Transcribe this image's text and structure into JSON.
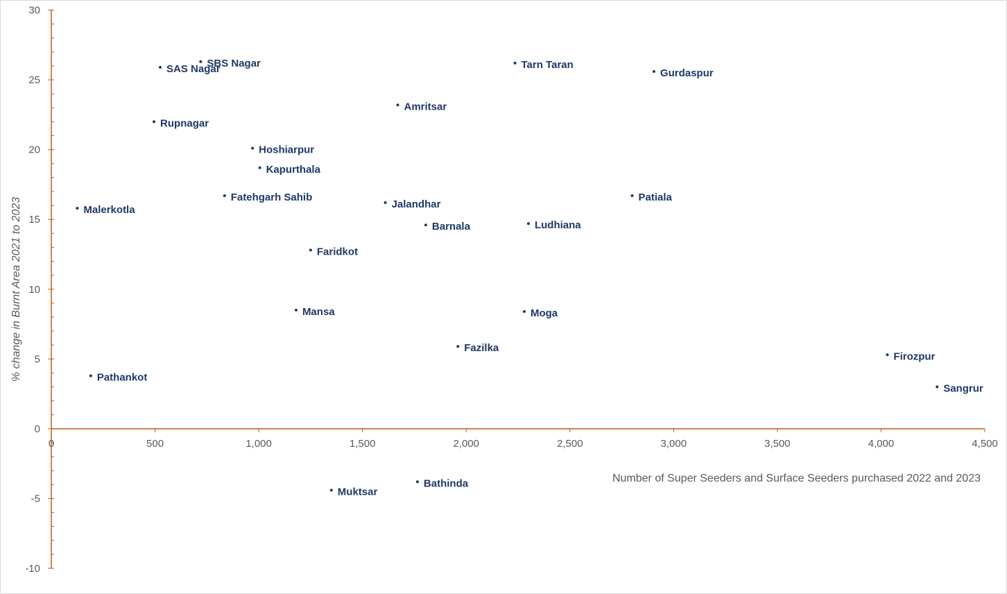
{
  "chart_data": {
    "type": "scatter",
    "xlabel": "Number of Super Seeders and Surface Seeders purchased  2022 and 2023",
    "ylabel": "% change in Burnt Area 2021 to 2023",
    "xlim": [
      0,
      4500
    ],
    "ylim": [
      -10,
      30
    ],
    "x_ticks": [
      {
        "value": 0,
        "label": "0"
      },
      {
        "value": 500,
        "label": "500"
      },
      {
        "value": 1000,
        "label": "1,000"
      },
      {
        "value": 1500,
        "label": "1,500"
      },
      {
        "value": 2000,
        "label": "2,000"
      },
      {
        "value": 2500,
        "label": "2,500"
      },
      {
        "value": 3000,
        "label": "3,000"
      },
      {
        "value": 3500,
        "label": "3,500"
      },
      {
        "value": 4000,
        "label": "4,000"
      },
      {
        "value": 4500,
        "label": "4,500"
      }
    ],
    "y_ticks": [
      {
        "value": 30,
        "label": "30"
      },
      {
        "value": 25,
        "label": "25"
      },
      {
        "value": 20,
        "label": "20"
      },
      {
        "value": 15,
        "label": "15"
      },
      {
        "value": 10,
        "label": "10"
      },
      {
        "value": 5,
        "label": "5"
      },
      {
        "value": 0,
        "label": "0"
      },
      {
        "value": -5,
        "label": "-5"
      },
      {
        "value": -10,
        "label": "-10"
      }
    ],
    "grid": false,
    "legend": "none",
    "colors": {
      "axis": "#c55a11",
      "point": "#1f3864",
      "label": "#1f3864",
      "ticks": "#595959"
    },
    "points": [
      {
        "name": "SBS Nagar",
        "x": 720,
        "y": 26.3
      },
      {
        "name": "SAS Nagar",
        "x": 525,
        "y": 25.9
      },
      {
        "name": "Tarn Taran",
        "x": 2235,
        "y": 26.2
      },
      {
        "name": "Gurdaspur",
        "x": 2905,
        "y": 25.6
      },
      {
        "name": "Amritsar",
        "x": 1670,
        "y": 23.2
      },
      {
        "name": "Rupnagar",
        "x": 495,
        "y": 22.0
      },
      {
        "name": "Hoshiarpur",
        "x": 970,
        "y": 20.1
      },
      {
        "name": "Kapurthala",
        "x": 1005,
        "y": 18.7
      },
      {
        "name": "Fatehgarh Sahib",
        "x": 835,
        "y": 16.7
      },
      {
        "name": "Patiala",
        "x": 2800,
        "y": 16.7
      },
      {
        "name": "Jalandhar",
        "x": 1610,
        "y": 16.2
      },
      {
        "name": "Malerkotla",
        "x": 125,
        "y": 15.8
      },
      {
        "name": "Barnala",
        "x": 1805,
        "y": 14.6
      },
      {
        "name": "Ludhiana",
        "x": 2300,
        "y": 14.7
      },
      {
        "name": "Faridkot",
        "x": 1250,
        "y": 12.8
      },
      {
        "name": "Mansa",
        "x": 1180,
        "y": 8.5
      },
      {
        "name": "Moga",
        "x": 2280,
        "y": 8.4
      },
      {
        "name": "Fazilka",
        "x": 1960,
        "y": 5.9
      },
      {
        "name": "Firozpur",
        "x": 4030,
        "y": 5.3
      },
      {
        "name": "Sangrur",
        "x": 4270,
        "y": 3.0
      },
      {
        "name": "Pathankot",
        "x": 190,
        "y": 3.8
      },
      {
        "name": "Bathinda",
        "x": 1765,
        "y": -3.8
      },
      {
        "name": "Muktsar",
        "x": 1350,
        "y": -4.4
      }
    ]
  }
}
